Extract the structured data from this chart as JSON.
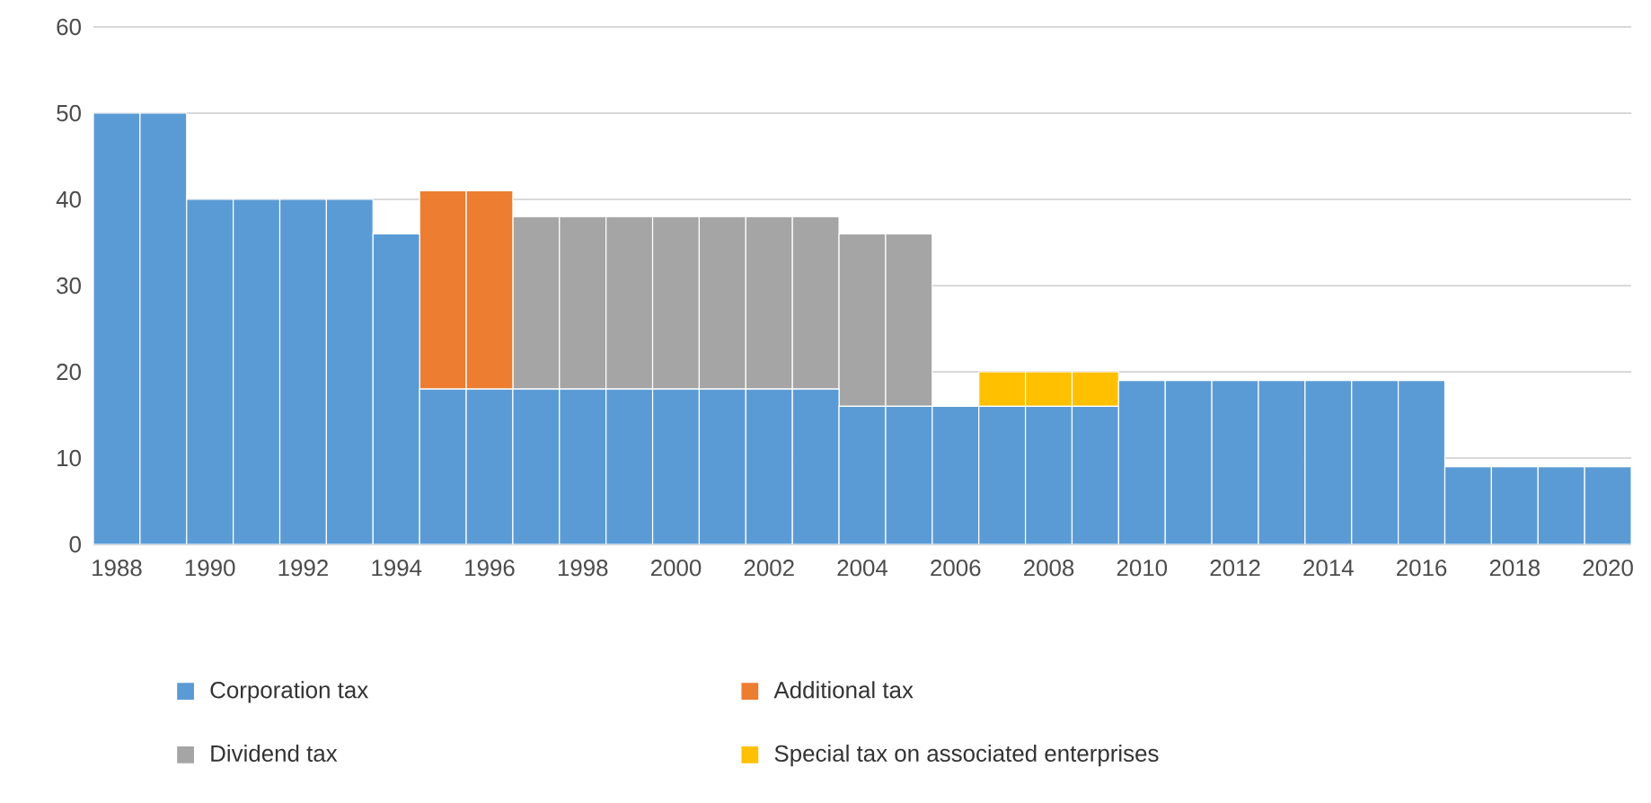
{
  "chart_data": {
    "type": "bar",
    "stacked": true,
    "categories": [
      "1988",
      null,
      "1990",
      null,
      "1992",
      null,
      "1994",
      null,
      "1996",
      null,
      "1998",
      null,
      "2000",
      null,
      "2002",
      null,
      "2004",
      null,
      "2006",
      null,
      "2008",
      null,
      "2010",
      null,
      "2012",
      null,
      "2014",
      null,
      "2016",
      null,
      "2018",
      null,
      "2020"
    ],
    "series": [
      {
        "name": "Corporation tax",
        "color": "#5b9bd5",
        "values": [
          50,
          50,
          40,
          40,
          40,
          40,
          36,
          18,
          18,
          18,
          18,
          18,
          18,
          18,
          18,
          18,
          16,
          16,
          16,
          16,
          16,
          16,
          19,
          19,
          19,
          19,
          19,
          19,
          19,
          9,
          9,
          9,
          9
        ]
      },
      {
        "name": "Additional tax",
        "color": "#ed7d31",
        "values": [
          null,
          null,
          null,
          null,
          null,
          null,
          null,
          23,
          23,
          null,
          null,
          null,
          null,
          null,
          null,
          null,
          null,
          null,
          null,
          null,
          null,
          null,
          null,
          null,
          null,
          null,
          null,
          null,
          null,
          null,
          null,
          null,
          null
        ]
      },
      {
        "name": "Dividend tax",
        "color": "#a5a5a5",
        "values": [
          null,
          null,
          null,
          null,
          null,
          null,
          null,
          null,
          null,
          20,
          20,
          20,
          20,
          20,
          20,
          20,
          20,
          20,
          null,
          null,
          null,
          null,
          null,
          null,
          null,
          null,
          null,
          null,
          null,
          null,
          null,
          null,
          null
        ]
      },
      {
        "name": "Special tax on associated enterprises",
        "color": "#ffc000",
        "values": [
          null,
          null,
          null,
          null,
          null,
          null,
          null,
          null,
          null,
          null,
          null,
          null,
          null,
          null,
          null,
          null,
          null,
          null,
          null,
          4,
          4,
          4,
          null,
          null,
          null,
          null,
          null,
          null,
          null,
          null,
          null,
          null,
          null
        ]
      }
    ],
    "ylim": [
      0,
      60
    ],
    "yticks": [
      0,
      10,
      20,
      30,
      40,
      50,
      60
    ],
    "grid": "y",
    "legend": "bottom"
  }
}
